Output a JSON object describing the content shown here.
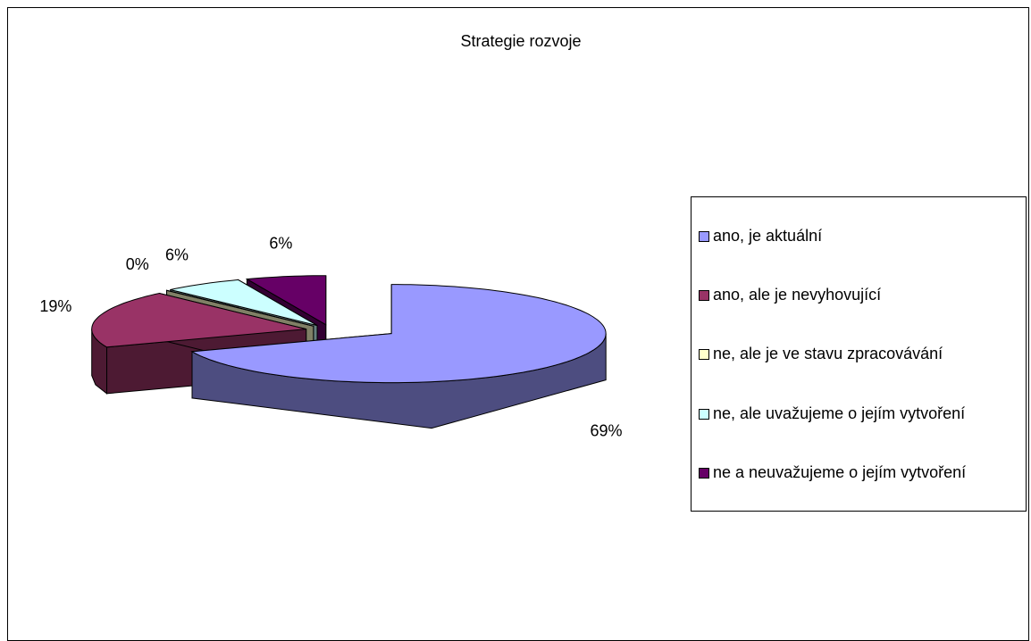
{
  "chart_data": {
    "type": "pie",
    "title": "Strategie rozvoje",
    "categories": [
      "ano, je aktuální",
      "ano, ale je nevyhovující",
      "ne, ale je ve stavu zpracovávání",
      "ne, ale uvažujeme o jejím vytvoření",
      "ne a neuvažujeme o jejím vytvoření"
    ],
    "values": [
      69,
      19,
      0,
      6,
      6
    ],
    "value_labels": [
      "69%",
      "19%",
      "0%",
      "6%",
      "6%"
    ],
    "colors": [
      "#9999ff",
      "#993366",
      "#ffffcc",
      "#ccffff",
      "#660066"
    ],
    "legend": "right"
  }
}
